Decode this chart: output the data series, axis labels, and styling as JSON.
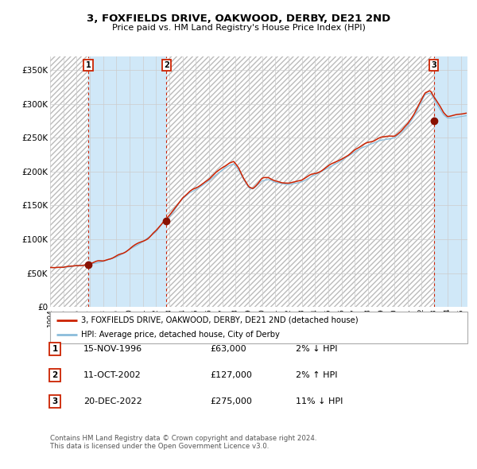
{
  "title": "3, FOXFIELDS DRIVE, OAKWOOD, DERBY, DE21 2ND",
  "subtitle": "Price paid vs. HM Land Registry's House Price Index (HPI)",
  "ylim": [
    0,
    370000
  ],
  "yticks": [
    0,
    50000,
    100000,
    150000,
    200000,
    250000,
    300000,
    350000
  ],
  "ytick_labels": [
    "£0",
    "£50K",
    "£100K",
    "£150K",
    "£200K",
    "£250K",
    "£300K",
    "£350K"
  ],
  "hpi_color": "#8bbcda",
  "price_color": "#cc2200",
  "sale_marker_color": "#881100",
  "bg_color": "#ffffff",
  "grid_color": "#cccccc",
  "shade_color": "#d0e8f8",
  "dashed_line_color": "#cc2200",
  "hatch_color": "#bbbbbb",
  "legend_box_label1": "3, FOXFIELDS DRIVE, OAKWOOD, DERBY, DE21 2ND (detached house)",
  "legend_box_label2": "HPI: Average price, detached house, City of Derby",
  "transaction1_label": "1",
  "transaction1_date": "15-NOV-1996",
  "transaction1_price": "£63,000",
  "transaction1_hpi": "2% ↓ HPI",
  "transaction2_label": "2",
  "transaction2_date": "11-OCT-2002",
  "transaction2_price": "£127,000",
  "transaction2_hpi": "2% ↑ HPI",
  "transaction3_label": "3",
  "transaction3_date": "20-DEC-2022",
  "transaction3_price": "£275,000",
  "transaction3_hpi": "11% ↓ HPI",
  "footer1": "Contains HM Land Registry data © Crown copyright and database right 2024.",
  "footer2": "This data is licensed under the Open Government Licence v3.0.",
  "sale1_year": 1996.88,
  "sale1_value": 63000,
  "sale2_year": 2002.78,
  "sale2_value": 127000,
  "sale3_year": 2022.97,
  "sale3_value": 275000,
  "xmin": 1994.0,
  "xmax": 2025.5
}
